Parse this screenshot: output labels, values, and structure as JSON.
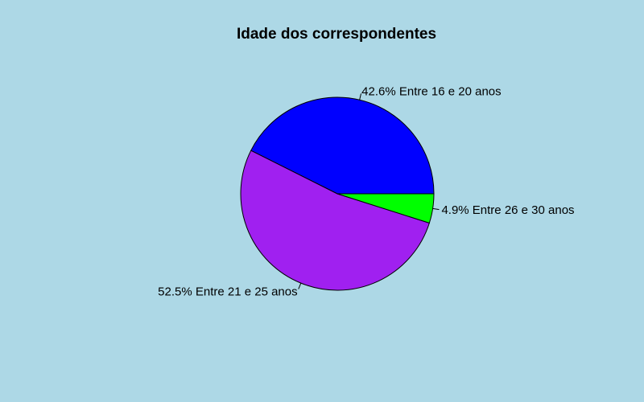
{
  "chart_data": {
    "type": "pie",
    "title": "Idade dos correspondentes",
    "background": "#add8e6",
    "slices": [
      {
        "label": "42.6% Entre 16 e 20 anos",
        "percent": 42.6,
        "color": "#0000ff"
      },
      {
        "label": "52.5% Entre 21 e 25 anos",
        "percent": 52.5,
        "color": "#a020f0"
      },
      {
        "label": "4.9% Entre 26 e 30 anos",
        "percent": 4.9,
        "color": "#00ff00"
      }
    ],
    "start_angle_deg": 0,
    "direction": "counterclockwise"
  }
}
